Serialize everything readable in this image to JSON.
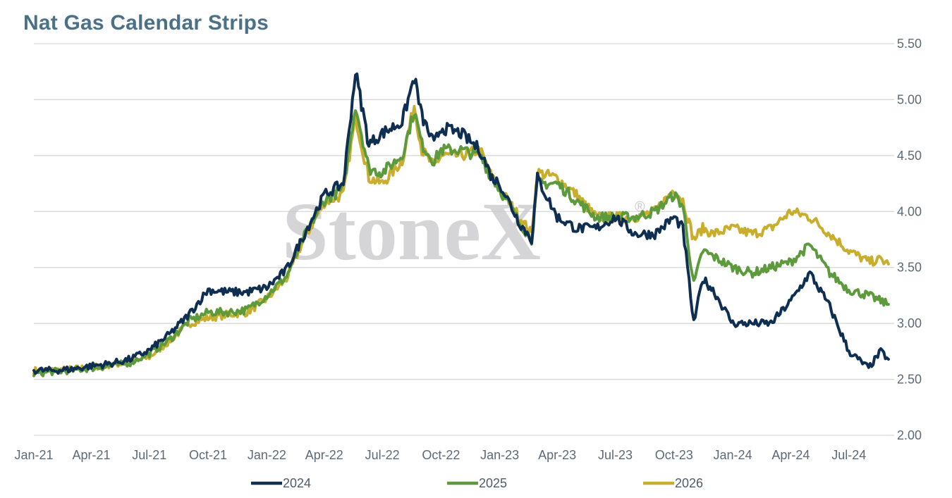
{
  "title": "Nat Gas Calendar Strips",
  "watermark": {
    "text": "StoneX",
    "mark": "®"
  },
  "colors": {
    "2024": "#0f2f52",
    "2025": "#5c9a3c",
    "2026": "#c9ae2e",
    "grid": "#d6d6d6",
    "title": "#4a7187"
  },
  "chart_data": {
    "type": "line",
    "title": "Nat Gas Calendar Strips",
    "xlabel": "",
    "ylabel": "",
    "y_axis_side": "right",
    "ylim": [
      2.0,
      5.5
    ],
    "yticks": [
      2.0,
      2.5,
      3.0,
      3.5,
      4.0,
      4.5,
      5.0,
      5.5
    ],
    "ytick_labels": [
      "2.00",
      "2.50",
      "3.00",
      "3.50",
      "4.00",
      "4.50",
      "5.00",
      "5.50"
    ],
    "xlim": [
      "2021-01-01",
      "2024-09-10"
    ],
    "xticks": [
      "Jan-21",
      "Apr-21",
      "Jul-21",
      "Oct-21",
      "Jan-22",
      "Apr-22",
      "Jul-22",
      "Oct-22",
      "Jan-23",
      "Apr-23",
      "Jul-23",
      "Oct-23",
      "Jan-24",
      "Apr-24",
      "Jul-24"
    ],
    "grid": true,
    "legend_position": "bottom",
    "x": [
      "2021-01-01",
      "2021-02-01",
      "2021-03-01",
      "2021-04-01",
      "2021-05-01",
      "2021-06-01",
      "2021-07-01",
      "2021-08-01",
      "2021-09-01",
      "2021-10-01",
      "2021-11-01",
      "2021-12-01",
      "2022-01-01",
      "2022-02-01",
      "2022-03-01",
      "2022-04-01",
      "2022-05-01",
      "2022-05-20",
      "2022-06-10",
      "2022-07-01",
      "2022-08-01",
      "2022-08-20",
      "2022-09-01",
      "2022-09-20",
      "2022-10-01",
      "2022-11-01",
      "2022-12-01",
      "2022-12-20",
      "2023-01-01",
      "2023-02-01",
      "2023-02-20",
      "2023-03-01",
      "2023-04-01",
      "2023-05-01",
      "2023-06-01",
      "2023-07-01",
      "2023-08-01",
      "2023-09-01",
      "2023-10-01",
      "2023-10-15",
      "2023-11-01",
      "2023-11-15",
      "2023-12-01",
      "2024-01-01",
      "2024-02-01",
      "2024-03-01",
      "2024-04-01",
      "2024-05-01",
      "2024-06-01",
      "2024-07-01",
      "2024-08-01",
      "2024-08-20",
      "2024-09-01"
    ],
    "series": [
      {
        "name": "2024",
        "values": [
          2.58,
          2.58,
          2.59,
          2.62,
          2.64,
          2.68,
          2.76,
          2.9,
          3.08,
          3.3,
          3.28,
          3.28,
          3.32,
          3.48,
          3.8,
          4.15,
          4.25,
          5.25,
          4.6,
          4.7,
          4.8,
          5.2,
          4.85,
          4.6,
          4.75,
          4.7,
          4.55,
          4.3,
          4.25,
          3.9,
          3.75,
          4.3,
          3.95,
          3.85,
          3.85,
          3.95,
          3.8,
          3.8,
          3.95,
          3.85,
          3.0,
          3.4,
          3.3,
          3.0,
          3.0,
          3.0,
          3.2,
          3.45,
          3.15,
          2.75,
          2.6,
          2.75,
          2.68
        ]
      },
      {
        "name": "2025",
        "values": [
          2.55,
          2.57,
          2.58,
          2.6,
          2.62,
          2.65,
          2.73,
          2.85,
          3.02,
          3.1,
          3.1,
          3.12,
          3.25,
          3.42,
          3.78,
          4.1,
          4.2,
          4.95,
          4.38,
          4.35,
          4.5,
          4.9,
          4.6,
          4.45,
          4.55,
          4.55,
          4.5,
          4.3,
          4.2,
          3.9,
          3.75,
          4.25,
          4.25,
          4.1,
          3.95,
          3.95,
          3.95,
          4.0,
          4.15,
          4.05,
          3.35,
          3.65,
          3.6,
          3.5,
          3.45,
          3.5,
          3.55,
          3.7,
          3.45,
          3.3,
          3.25,
          3.2,
          3.17
        ]
      },
      {
        "name": "2026",
        "values": [
          2.58,
          2.58,
          2.59,
          2.61,
          2.63,
          2.65,
          2.7,
          2.84,
          3.0,
          3.05,
          3.08,
          3.1,
          3.22,
          3.4,
          3.76,
          4.08,
          4.15,
          4.85,
          4.3,
          4.25,
          4.45,
          4.95,
          4.55,
          4.4,
          4.5,
          4.5,
          4.55,
          4.3,
          4.2,
          3.95,
          3.8,
          4.35,
          4.3,
          4.15,
          3.95,
          3.95,
          3.95,
          4.0,
          4.2,
          4.1,
          3.75,
          3.85,
          3.8,
          3.85,
          3.8,
          3.85,
          4.0,
          3.95,
          3.8,
          3.65,
          3.55,
          3.57,
          3.53
        ]
      }
    ]
  }
}
